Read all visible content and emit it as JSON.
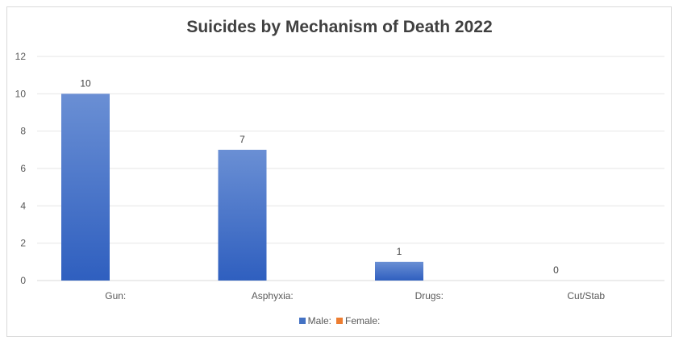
{
  "chart_data": {
    "type": "bar",
    "title": "Suicides by Mechanism of Death 2022",
    "categories": [
      "Gun:",
      "Asphyxia:",
      "Drugs:",
      "Cut/Stab"
    ],
    "series": [
      {
        "name": "Male:",
        "values": [
          10,
          7,
          1,
          0
        ],
        "color": "#4472c4"
      },
      {
        "name": "Female:",
        "values": [
          0,
          0,
          0,
          0
        ],
        "color": "#ed7d31"
      }
    ],
    "data_labels": [
      "10",
      "7",
      "1",
      "0"
    ],
    "ylim": [
      0,
      12
    ],
    "yticks": [
      0,
      2,
      4,
      6,
      8,
      10,
      12
    ],
    "grid": true,
    "legend_position": "bottom"
  }
}
